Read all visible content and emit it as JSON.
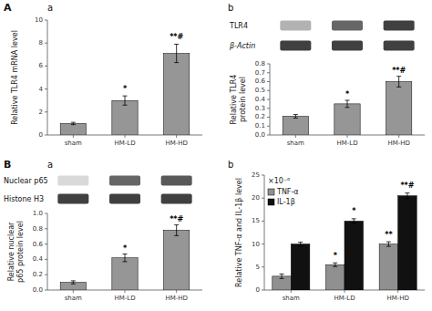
{
  "chart_data": [
    {
      "type": "bar",
      "panel_label": "A",
      "title": "a",
      "categories": [
        "sham",
        "HM-LD",
        "HM-HD"
      ],
      "values": [
        1.0,
        3.0,
        7.1
      ],
      "errors": [
        0.1,
        0.4,
        0.8
      ],
      "sig_labels": [
        null,
        "*",
        "**#"
      ],
      "ylabel": "Relative TLR4 mRNA level",
      "color": "#969696",
      "ylim": [
        0,
        10
      ],
      "yticks": [
        0,
        2,
        4,
        6,
        8,
        10
      ]
    },
    {
      "type": "blot",
      "title": "b",
      "bands": [
        {
          "name": "TLR4",
          "values": [
            0.3,
            0.6,
            0.75
          ]
        },
        {
          "name": "β-Actin",
          "values": [
            0.75,
            0.75,
            0.75
          ]
        }
      ]
    },
    {
      "type": "bar",
      "categories": [
        "sham",
        "HM-LD",
        "HM-HD"
      ],
      "values": [
        0.21,
        0.35,
        0.6
      ],
      "errors": [
        0.02,
        0.04,
        0.06
      ],
      "sig_labels": [
        null,
        "*",
        "**#"
      ],
      "ylabel": "Relative TLR4\nprotein level",
      "color": "#969696",
      "ylim": [
        0,
        0.8
      ],
      "yticks": [
        {
          "value": 0,
          "label": "0.0"
        },
        0.1,
        0.2,
        0.3,
        0.4,
        0.5,
        0.6,
        0.7,
        0.8
      ]
    },
    {
      "type": "blot",
      "panel_label": "B",
      "title": "a",
      "bands": [
        {
          "name": "Nuclear p65",
          "values": [
            0.15,
            0.6,
            0.65
          ]
        },
        {
          "name": "Histone H3",
          "values": [
            0.75,
            0.75,
            0.75
          ]
        }
      ]
    },
    {
      "type": "bar",
      "categories": [
        "sham",
        "HM-LD",
        "HM-HD"
      ],
      "values": [
        0.1,
        0.42,
        0.78
      ],
      "errors": [
        0.02,
        0.05,
        0.07
      ],
      "sig_labels": [
        null,
        "*",
        "**#"
      ],
      "ylabel": "Relative nuclear\np65 protein level",
      "color": "#969696",
      "ylim": [
        0,
        1.0
      ],
      "yticks": [
        {
          "value": 0,
          "label": "0.0"
        },
        0.2,
        0.4,
        0.6,
        0.8,
        {
          "value": 1,
          "label": "1.0"
        }
      ]
    },
    {
      "type": "bar",
      "title": "b",
      "categories": [
        "sham",
        "HM-LD",
        "HM-HD"
      ],
      "series": [
        {
          "name": "TNF-α",
          "color": "#909090",
          "values": [
            3.0,
            5.5,
            10.0
          ],
          "errors": [
            0.5,
            0.4,
            0.5
          ],
          "sig_labels": [
            null,
            "*",
            "**"
          ]
        },
        {
          "name": "IL-1β",
          "color": "#111111",
          "values": [
            10.0,
            15.0,
            20.5
          ],
          "errors": [
            0.4,
            0.5,
            0.6
          ],
          "sig_labels": [
            null,
            "*",
            "**#"
          ]
        }
      ],
      "ylabel": "Relative TNF-α and IL-1β level",
      "annotation": "×10⁻⁶",
      "legend": "upper left",
      "ylim": [
        0,
        25
      ],
      "yticks": [
        0,
        5,
        10,
        15,
        20,
        25
      ]
    }
  ]
}
